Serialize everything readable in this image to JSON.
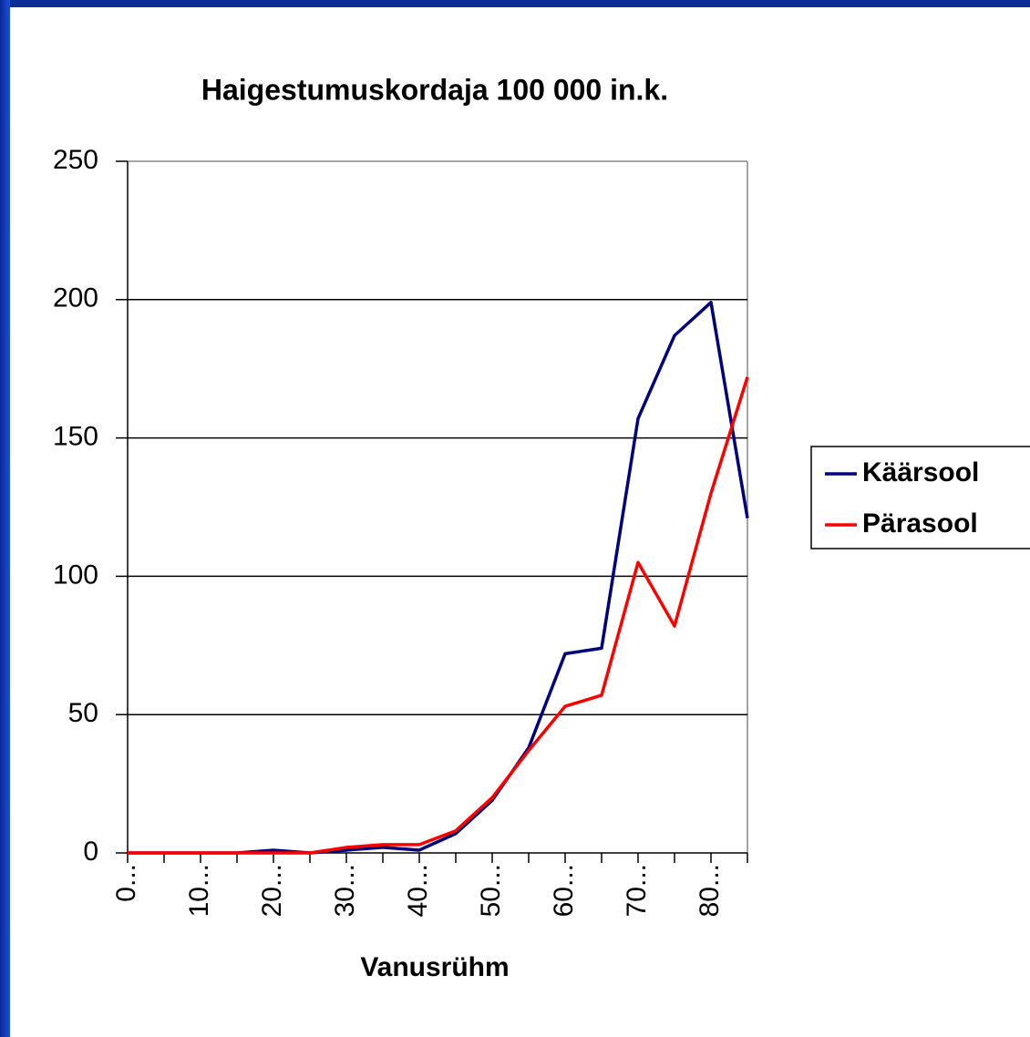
{
  "chart_data": {
    "type": "line",
    "title": "Haigestumuskordaja 100 000 in.k.",
    "x_label": "Vanusrühm",
    "categories": [
      "0...",
      null,
      "10...",
      null,
      "20...",
      null,
      "30...",
      null,
      "40...",
      null,
      "50...",
      null,
      "60...",
      null,
      "70...",
      null,
      "80...",
      null
    ],
    "series": [
      {
        "name": "Käärsool",
        "color": "#000080",
        "values": [
          0,
          0,
          0,
          0,
          1,
          0,
          1,
          2,
          1,
          7,
          19,
          38,
          72,
          74,
          157,
          187,
          199,
          121
        ]
      },
      {
        "name": "Pärasool",
        "color": "#ff0000",
        "values": [
          0,
          0,
          0,
          0,
          0,
          0,
          2,
          3,
          3,
          8,
          20,
          37,
          53,
          57,
          105,
          82,
          130,
          172
        ]
      }
    ],
    "ylim": [
      0,
      250
    ],
    "yticks": [
      0,
      50,
      100,
      150,
      200,
      250
    ],
    "grid": true,
    "legend": "right"
  }
}
